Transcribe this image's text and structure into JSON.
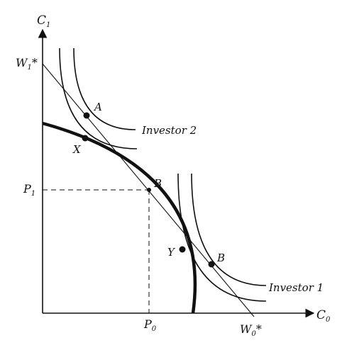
{
  "axes": {
    "y_label": "C",
    "y_label_sub": "1",
    "x_label": "C",
    "x_label_sub": "0"
  },
  "tick_labels": {
    "w1": "W",
    "w1_sub": "1",
    "w1_star": "*",
    "p1": "P",
    "p1_sub": "1",
    "p0": "P",
    "p0_sub": "0",
    "w0": "W",
    "w0_sub": "0",
    "w0_star": "*"
  },
  "points": {
    "a": "A",
    "x": "X",
    "b_frontier": "B",
    "y": "Y",
    "b_investor1": "B"
  },
  "curves": {
    "investor2": "Investor 2",
    "investor1": "Investor 1"
  },
  "colors": {
    "ink": "#111111"
  }
}
